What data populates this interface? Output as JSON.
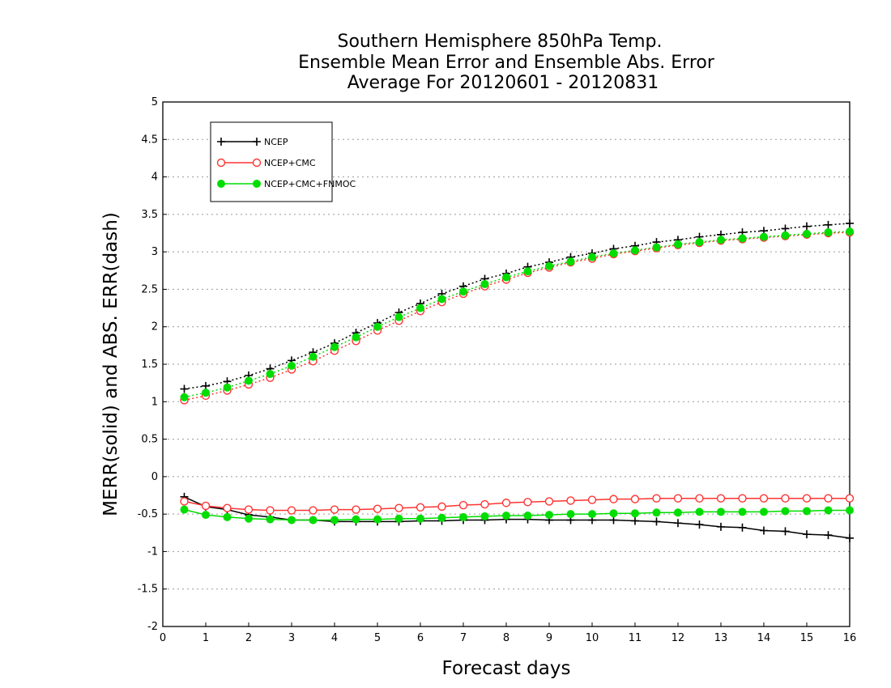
{
  "chart_data": {
    "type": "line",
    "title_lines": [
      "Southern Hemisphere 850hPa Temp.",
      "Ensemble Mean Error and Ensemble Abs. Error",
      "Average For 20120601 - 20120831"
    ],
    "xlabel": "Forecast days",
    "ylabel": "MERR(solid) and ABS. ERR(dash)",
    "xlim": [
      0,
      16
    ],
    "ylim": [
      -2,
      5
    ],
    "xticks": [
      "0",
      "1",
      "2",
      "3",
      "4",
      "5",
      "6",
      "7",
      "8",
      "9",
      "10",
      "11",
      "12",
      "13",
      "14",
      "15",
      "16"
    ],
    "yticks": [
      "-2",
      "-1.5",
      "-1",
      "-0.5",
      "0",
      "0.5",
      "1",
      "1.5",
      "2",
      "2.5",
      "3",
      "3.5",
      "4",
      "4.5",
      "5"
    ],
    "grid": "horizontal dotted",
    "legend_position": "top-left",
    "colors": {
      "NCEP": "#000000",
      "NCEP+CMC": "#ff3333",
      "NCEP+CMC+FNMOC": "#00dd00"
    },
    "x": [
      0.5,
      1,
      1.5,
      2,
      2.5,
      3,
      3.5,
      4,
      4.5,
      5,
      5.5,
      6,
      6.5,
      7,
      7.5,
      8,
      8.5,
      9,
      9.5,
      10,
      10.5,
      11,
      11.5,
      12,
      12.5,
      13,
      13.5,
      14,
      14.5,
      15,
      15.5,
      16
    ],
    "series": [
      {
        "name": "NCEP",
        "linestyle": "solid",
        "marker": "plus",
        "values": [
          -0.27,
          -0.4,
          -0.44,
          -0.51,
          -0.54,
          -0.58,
          -0.58,
          -0.6,
          -0.6,
          -0.6,
          -0.6,
          -0.59,
          -0.59,
          -0.58,
          -0.58,
          -0.57,
          -0.57,
          -0.58,
          -0.58,
          -0.58,
          -0.58,
          -0.59,
          -0.6,
          -0.62,
          -0.64,
          -0.67,
          -0.68,
          -0.72,
          -0.73,
          -0.77,
          -0.78,
          -0.82
        ]
      },
      {
        "name": "NCEP+CMC",
        "linestyle": "solid",
        "marker": "open-circle",
        "values": [
          -0.33,
          -0.39,
          -0.42,
          -0.44,
          -0.45,
          -0.45,
          -0.45,
          -0.44,
          -0.44,
          -0.43,
          -0.42,
          -0.41,
          -0.4,
          -0.38,
          -0.37,
          -0.35,
          -0.34,
          -0.33,
          -0.32,
          -0.31,
          -0.3,
          -0.3,
          -0.29,
          -0.29,
          -0.29,
          -0.29,
          -0.29,
          -0.29,
          -0.29,
          -0.29,
          -0.29,
          -0.29
        ]
      },
      {
        "name": "NCEP+CMC+FNMOC",
        "linestyle": "solid",
        "marker": "filled-circle",
        "values": [
          -0.44,
          -0.51,
          -0.54,
          -0.56,
          -0.57,
          -0.58,
          -0.58,
          -0.58,
          -0.57,
          -0.57,
          -0.56,
          -0.56,
          -0.55,
          -0.54,
          -0.53,
          -0.52,
          -0.52,
          -0.51,
          -0.5,
          -0.5,
          -0.49,
          -0.49,
          -0.48,
          -0.48,
          -0.47,
          -0.47,
          -0.47,
          -0.47,
          -0.46,
          -0.46,
          -0.45,
          -0.45
        ]
      },
      {
        "name": "NCEP",
        "linestyle": "dash",
        "marker": "plus",
        "values": [
          1.17,
          1.21,
          1.27,
          1.35,
          1.44,
          1.55,
          1.66,
          1.78,
          1.92,
          2.05,
          2.19,
          2.31,
          2.44,
          2.54,
          2.64,
          2.71,
          2.8,
          2.86,
          2.93,
          2.98,
          3.04,
          3.08,
          3.13,
          3.16,
          3.2,
          3.23,
          3.26,
          3.28,
          3.31,
          3.34,
          3.36,
          3.38
        ]
      },
      {
        "name": "NCEP+CMC",
        "linestyle": "dash",
        "marker": "open-circle",
        "values": [
          1.02,
          1.08,
          1.15,
          1.23,
          1.32,
          1.43,
          1.54,
          1.68,
          1.81,
          1.95,
          2.08,
          2.21,
          2.33,
          2.44,
          2.54,
          2.63,
          2.72,
          2.79,
          2.86,
          2.91,
          2.97,
          3.01,
          3.05,
          3.09,
          3.12,
          3.15,
          3.17,
          3.19,
          3.21,
          3.23,
          3.25,
          3.26
        ]
      },
      {
        "name": "NCEP+CMC+FNMOC",
        "linestyle": "dash",
        "marker": "filled-circle",
        "values": [
          1.06,
          1.12,
          1.19,
          1.28,
          1.37,
          1.48,
          1.6,
          1.73,
          1.86,
          2.0,
          2.13,
          2.25,
          2.37,
          2.47,
          2.57,
          2.66,
          2.74,
          2.81,
          2.87,
          2.93,
          2.98,
          3.02,
          3.06,
          3.1,
          3.13,
          3.16,
          3.18,
          3.2,
          3.22,
          3.24,
          3.26,
          3.27
        ]
      }
    ],
    "legend": [
      {
        "label": "NCEP",
        "color": "#000000",
        "marker": "plus"
      },
      {
        "label": "NCEP+CMC",
        "color": "#ff3333",
        "marker": "open-circle"
      },
      {
        "label": "NCEP+CMC+FNMOC",
        "color": "#00dd00",
        "marker": "filled-circle"
      }
    ]
  }
}
